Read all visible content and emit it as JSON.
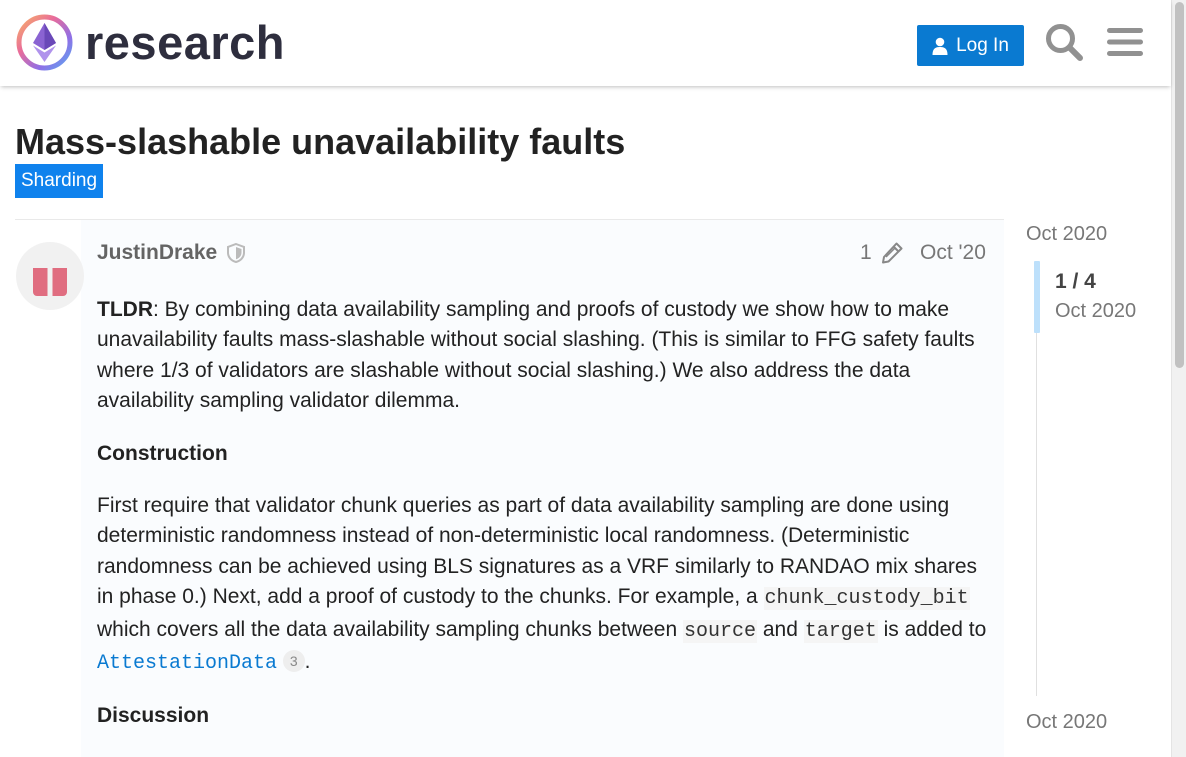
{
  "header": {
    "logo_text": "research",
    "login_label": "Log In"
  },
  "topic": {
    "title": "Mass-slashable unavailability faults",
    "category": "Sharding"
  },
  "post": {
    "username": "JustinDrake",
    "edit_count": "1",
    "date": "Oct '20",
    "p1_bold": "TLDR",
    "p1_text": ": By combining data availability sampling and proofs of custody we show how to make unavailability faults mass-slashable without social slashing. (This is similar to FFG safety faults where 1/3 of validators are slashable without social slashing.) We also address the data availability sampling validator dilemma.",
    "h_construction": "Construction",
    "p2_text": "First require that validator chunk queries as part of data availability sampling are done using deterministic randomness instead of non-deterministic local randomness. (Deterministic randomness can be achieved using BLS signatures as a VRF similarly to RANDAO mix shares in phase 0.) Next, add a proof of custody to the chunks. For example, a ",
    "code_chunk": "chunk_custody_bit",
    "p2_mid": " which covers all the data availability sampling chunks between ",
    "code_source": "source",
    "p2_and": " and ",
    "code_target": "target",
    "p2_added": " is added to ",
    "link_attestation": "AttestationData",
    "link_clicks": "3",
    "p2_end": ".",
    "h_discussion": "Discussion"
  },
  "timeline": {
    "top_date": "Oct 2020",
    "position": "1 / 4",
    "position_date": "Oct 2020",
    "bottom_date": "Oct 2020"
  },
  "colors": {
    "accent": "#0a7ad1",
    "category": "#0f82ed",
    "avatar": "#e06d80"
  }
}
